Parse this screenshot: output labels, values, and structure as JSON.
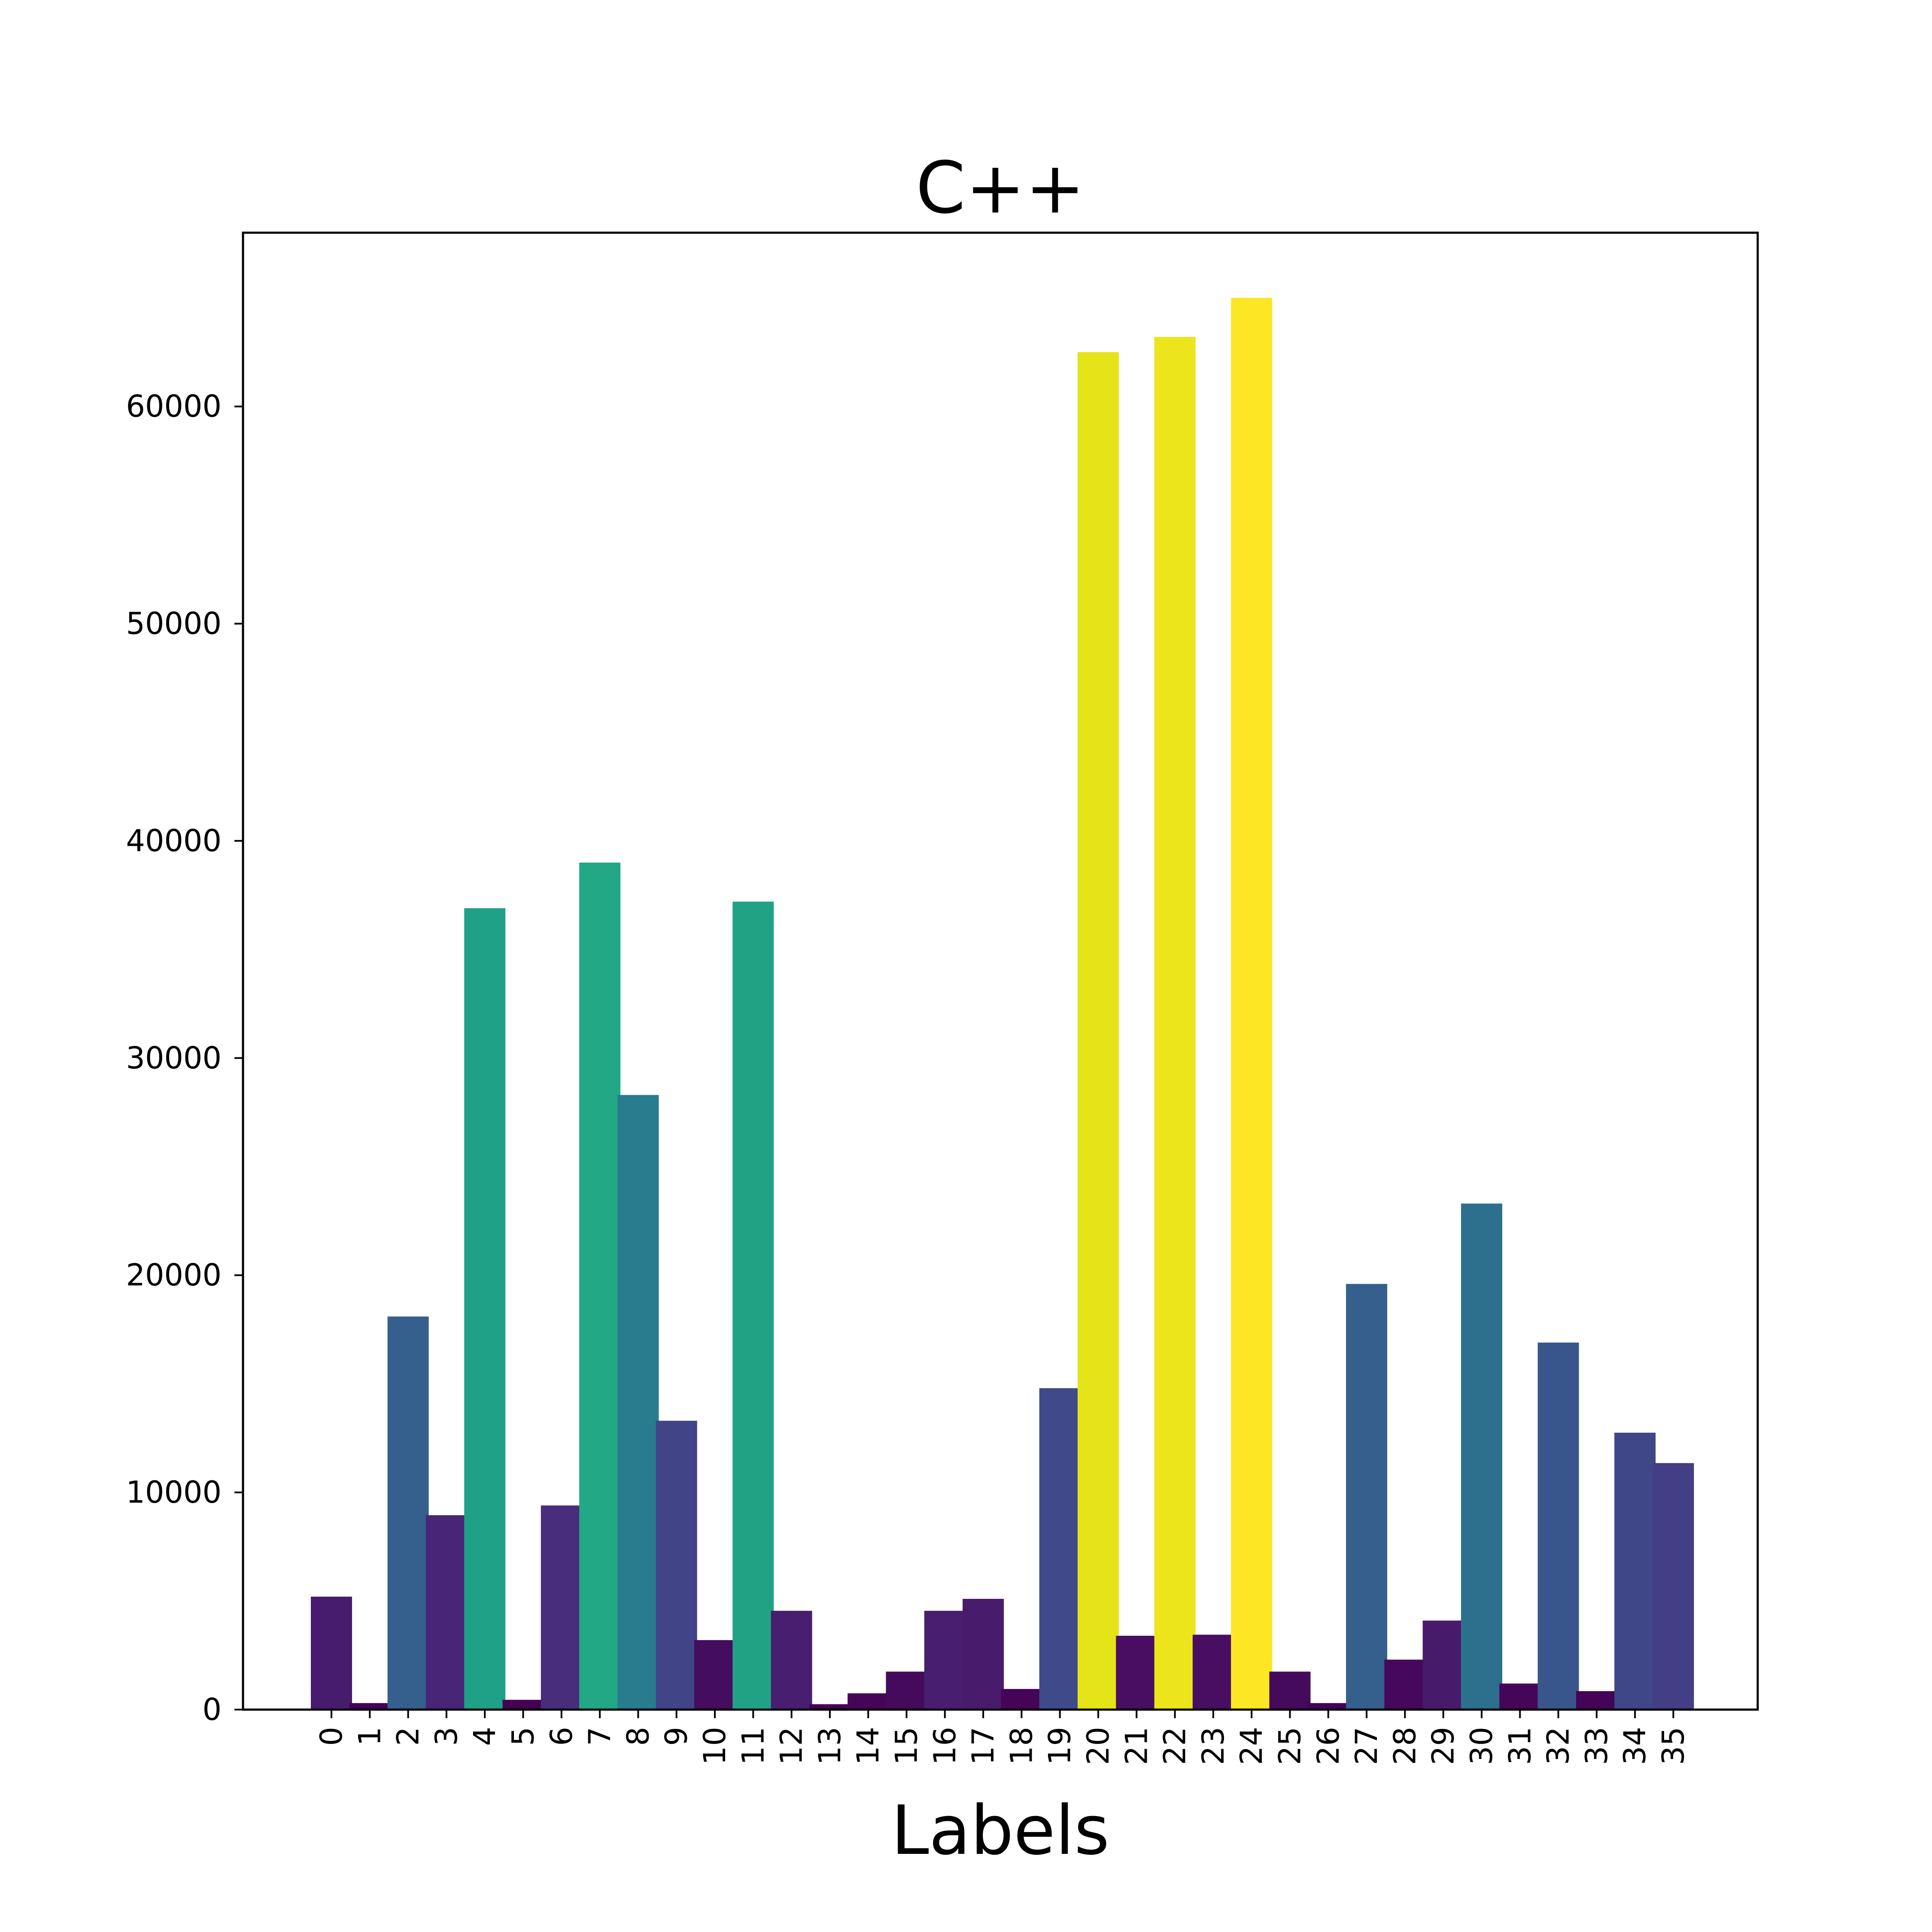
{
  "chart_data": {
    "type": "bar",
    "title": "C++",
    "xlabel": "Labels",
    "ylabel": "",
    "ylim": [
      0,
      68000
    ],
    "yticks": [
      0,
      10000,
      20000,
      30000,
      40000,
      50000,
      60000
    ],
    "ytick_labels": [
      "0",
      "10000",
      "20000",
      "30000",
      "40000",
      "50000",
      "60000"
    ],
    "grid": false,
    "legend": "none",
    "categories": [
      "0",
      "1",
      "2",
      "3",
      "4",
      "5",
      "6",
      "7",
      "8",
      "9",
      "10",
      "11",
      "12",
      "13",
      "14",
      "15",
      "16",
      "17",
      "18",
      "19",
      "20",
      "21",
      "22",
      "23",
      "24",
      "25",
      "26",
      "27",
      "28",
      "29",
      "30",
      "31",
      "32",
      "33",
      "34",
      "35"
    ],
    "values": [
      5200,
      300,
      18100,
      8950,
      36900,
      450,
      9400,
      39000,
      28300,
      13300,
      3200,
      37200,
      4550,
      250,
      750,
      1750,
      4550,
      5100,
      950,
      14800,
      62500,
      3400,
      63200,
      3450,
      65000,
      1750,
      300,
      19600,
      2300,
      4100,
      23300,
      1200,
      16900,
      850,
      12750,
      11350
    ],
    "bar_colors": [
      "#471c6e",
      "#440256",
      "#355f8d",
      "#482576",
      "#1fa187",
      "#440154",
      "#472d7b",
      "#22a884",
      "#297b8e",
      "#414487",
      "#450d5f",
      "#21a285",
      "#481f70",
      "#440154",
      "#450559",
      "#460a5d",
      "#481f70",
      "#481b6d",
      "#450457",
      "#3e4a89",
      "#e5e419",
      "#470e61",
      "#ece51b",
      "#470e61",
      "#fde725",
      "#460a5d",
      "#440256",
      "#355f8d",
      "#46085c",
      "#481a6c",
      "#2d708e",
      "#450659",
      "#39568c",
      "#440457",
      "#3f4788",
      "#433e85"
    ]
  }
}
